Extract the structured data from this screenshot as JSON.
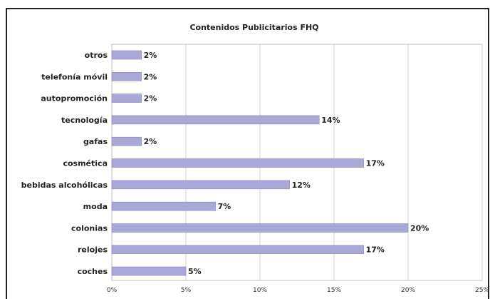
{
  "chart_data": {
    "type": "bar",
    "orientation": "horizontal",
    "title": "Contenidos Publicitarios FHQ",
    "categories": [
      "otros",
      "telefonía móvil",
      "autopromoción",
      "tecnología",
      "gafas",
      "cosmética",
      "bebidas alcohólicas",
      "moda",
      "colonias",
      "relojes",
      "coches"
    ],
    "values": [
      2,
      2,
      2,
      14,
      2,
      17,
      12,
      7,
      20,
      17,
      5
    ],
    "value_labels": [
      "2%",
      "2%",
      "2%",
      "14%",
      "2%",
      "17%",
      "12%",
      "7%",
      "20%",
      "17%",
      "5%"
    ],
    "xlim": [
      0,
      25
    ],
    "x_ticks": [
      0,
      5,
      10,
      15,
      20,
      25
    ],
    "x_tick_labels": [
      "0%",
      "5%",
      "10%",
      "15%",
      "20%",
      "25%"
    ],
    "xlabel": "",
    "ylabel": "",
    "grid": true,
    "legend": "none",
    "colors": {
      "bar": "#aaa8d6",
      "grid": "#d2d2d2"
    }
  }
}
